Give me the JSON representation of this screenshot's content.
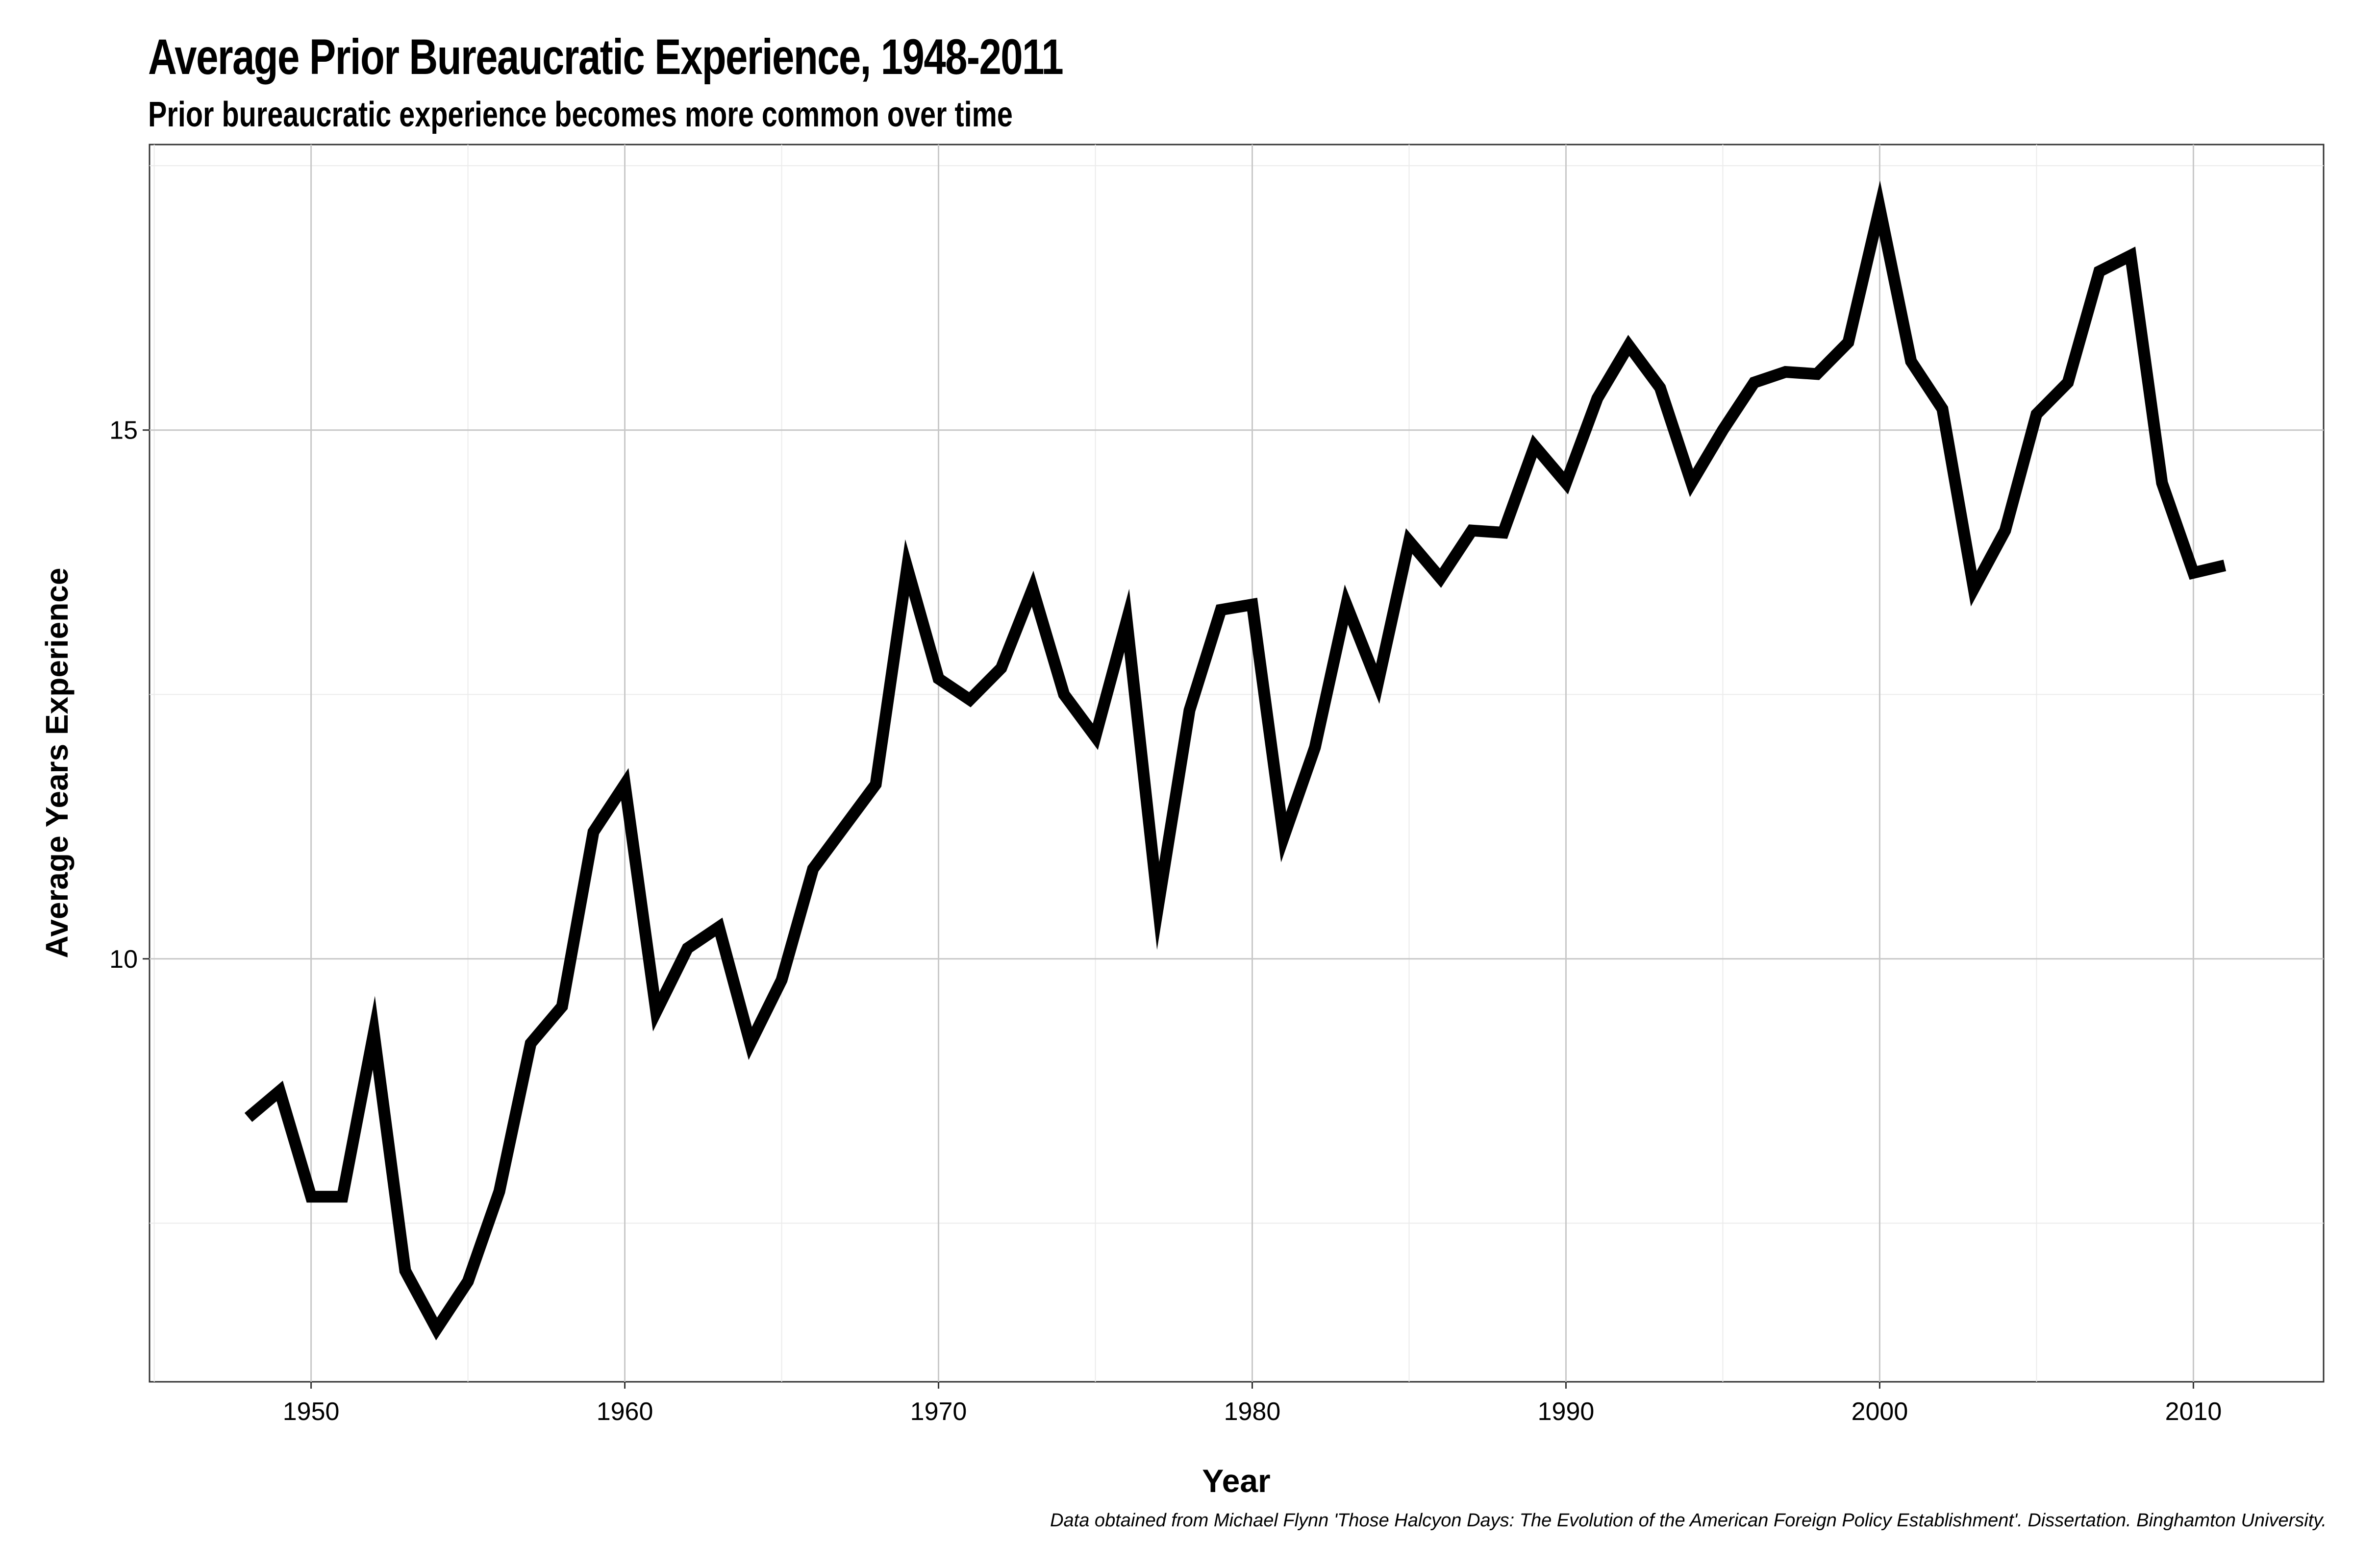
{
  "chart_data": {
    "type": "line",
    "title": "Average Prior Bureaucratic Experience, 1948-2011",
    "subtitle": "Prior bureaucratic experience becomes more common over time",
    "xlabel": "Year",
    "ylabel": "Average Years Experience",
    "caption": "Data obtained from Michael Flynn 'Those Halcyon Days: The Evolution of the American Foreign Policy Establishment'. Dissertation. Binghamton University.",
    "xlim": [
      1944.85,
      2014.15
    ],
    "ylim": [
      6.0,
      17.7
    ],
    "x_ticks": [
      1950,
      1960,
      1970,
      1980,
      1990,
      2000,
      2010
    ],
    "y_ticks": [
      10,
      15
    ],
    "grid": true,
    "legend": "none",
    "line_color": "#000000",
    "series": [
      {
        "x": [
          1948,
          1949,
          1950,
          1951,
          1952,
          1953,
          1954,
          1955,
          1956,
          1957,
          1958,
          1959,
          1960,
          1961,
          1962,
          1963,
          1964,
          1965,
          1966,
          1967,
          1968,
          1969,
          1970,
          1971,
          1972,
          1973,
          1974,
          1975,
          1976,
          1977,
          1978,
          1979,
          1980,
          1981,
          1982,
          1983,
          1984,
          1985,
          1986,
          1987,
          1988,
          1989,
          1990,
          1991,
          1992,
          1993,
          1994,
          1995,
          1996,
          1997,
          1998,
          1999,
          2000,
          2001,
          2002,
          2003,
          2004,
          2005,
          2006,
          2007,
          2008,
          2009,
          2010,
          2011
        ],
        "values": [
          8.5,
          8.75,
          7.75,
          7.75,
          9.3,
          7.05,
          6.5,
          6.95,
          7.8,
          9.2,
          9.55,
          11.2,
          11.65,
          9.5,
          10.1,
          10.3,
          9.2,
          9.8,
          10.85,
          11.25,
          11.65,
          13.7,
          12.65,
          12.45,
          12.75,
          13.5,
          12.5,
          12.1,
          13.2,
          10.5,
          12.35,
          13.3,
          13.35,
          11.15,
          12.0,
          13.35,
          12.6,
          13.95,
          13.6,
          14.05,
          14.03,
          14.85,
          14.5,
          15.3,
          15.8,
          15.4,
          14.5,
          15.0,
          15.45,
          15.55,
          15.53,
          15.83,
          17.1,
          15.65,
          15.2,
          13.5,
          14.05,
          15.15,
          15.45,
          16.5,
          16.65,
          14.5,
          13.65,
          13.72
        ]
      }
    ]
  }
}
